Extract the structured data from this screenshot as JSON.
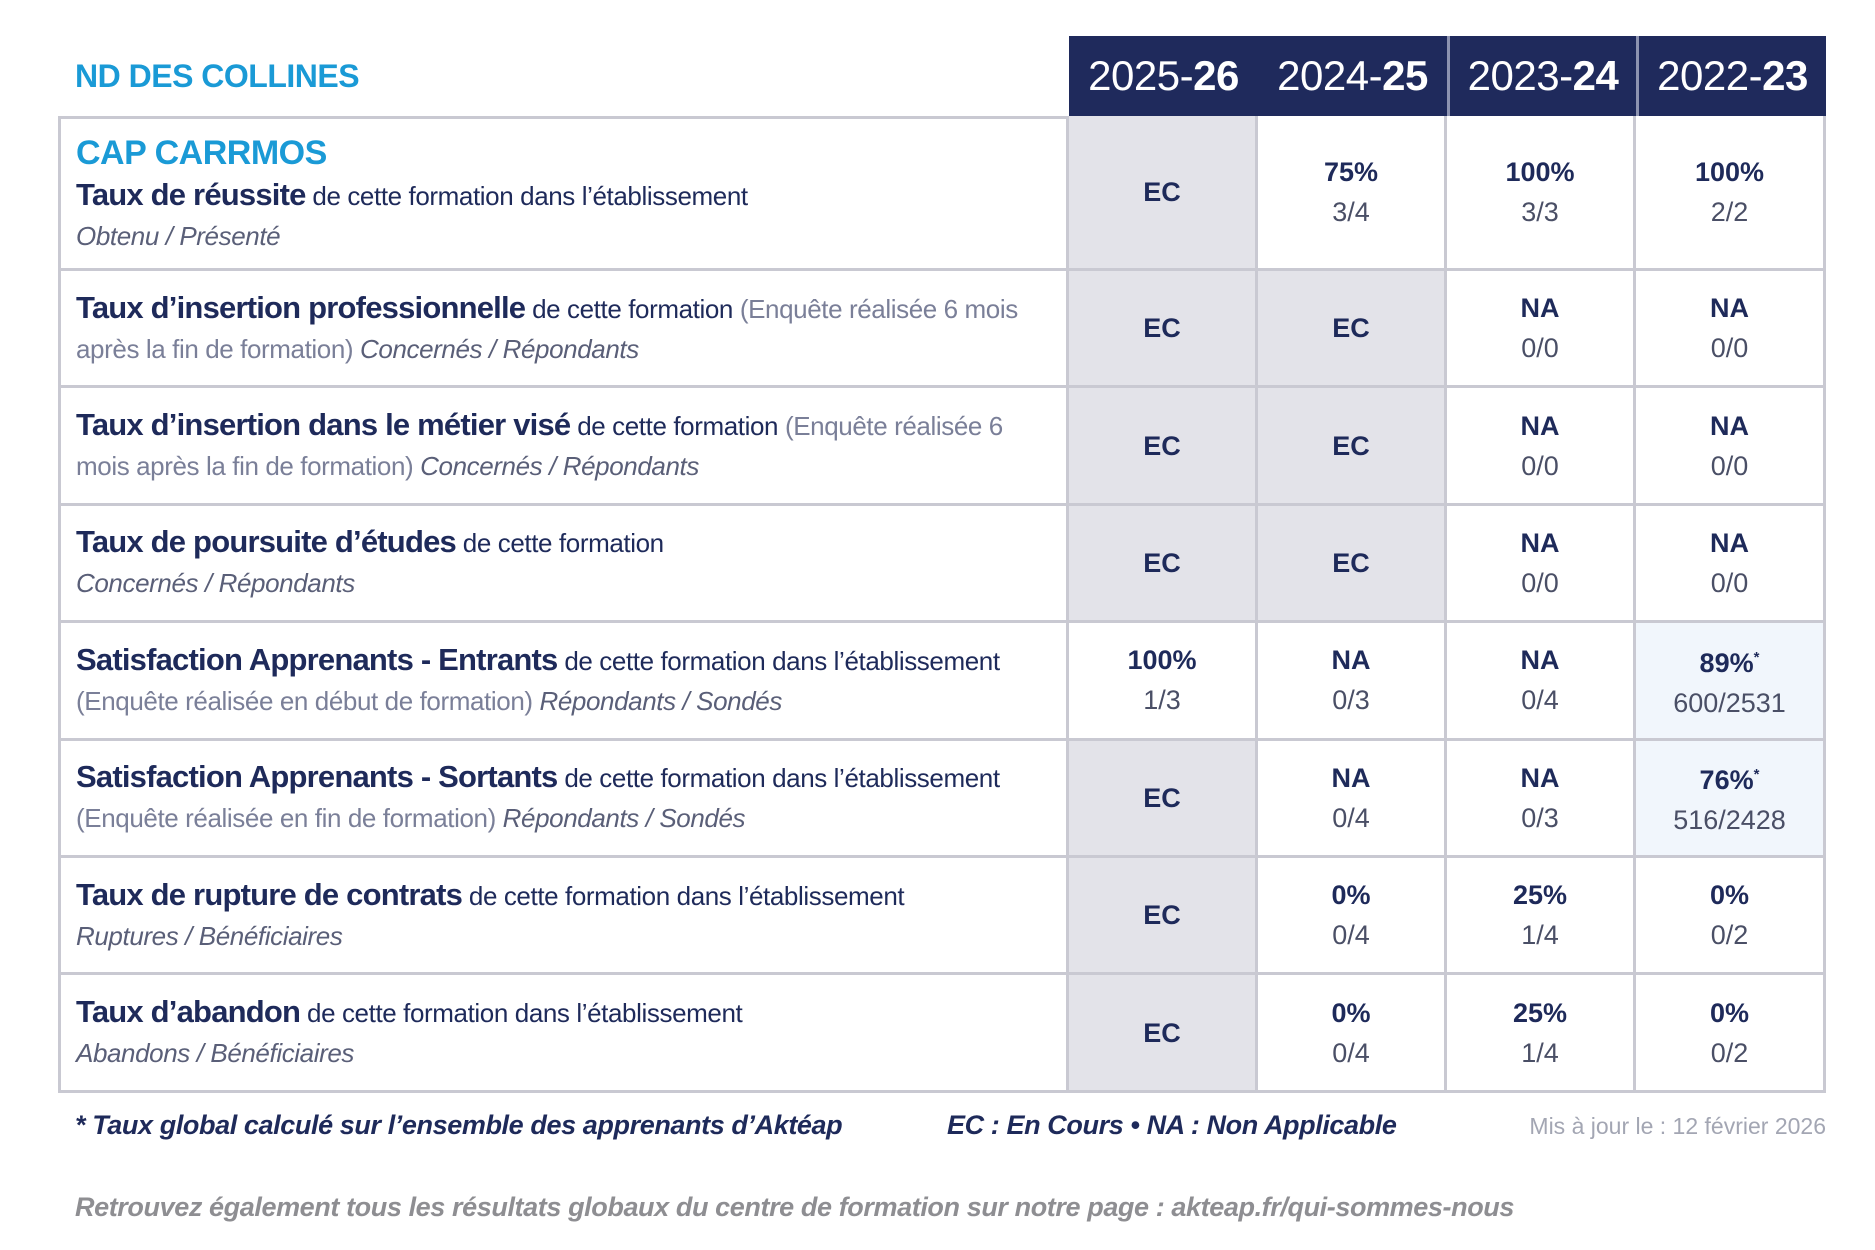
{
  "header": {
    "school": "ND DES COLLINES",
    "years": [
      {
        "light": "2025-",
        "bold": "26"
      },
      {
        "light": "2024-",
        "bold": "25"
      },
      {
        "light": "2023-",
        "bold": "24"
      },
      {
        "light": "2022-",
        "bold": "23"
      }
    ]
  },
  "program": "CAP CARRMOS",
  "rows": [
    {
      "title": "Taux de réussite",
      "desc": "de cette formation dans l’établissement",
      "unit": "Obtenu / Présenté",
      "cells": [
        {
          "rate": "EC"
        },
        {
          "rate": "75%",
          "ratio": "3/4"
        },
        {
          "rate": "100%",
          "ratio": "3/3"
        },
        {
          "rate": "100%",
          "ratio": "2/2"
        }
      ]
    },
    {
      "title": "Taux d’insertion professionnelle",
      "desc": "de cette formation",
      "note": "(Enquête réalisée 6 mois après la fin de formation)",
      "unit": "Concernés / Répondants",
      "cells": [
        {
          "rate": "EC"
        },
        {
          "rate": "EC"
        },
        {
          "rate": "NA",
          "ratio": "0/0"
        },
        {
          "rate": "NA",
          "ratio": "0/0"
        }
      ]
    },
    {
      "title": "Taux d’insertion dans le métier visé",
      "desc": "de cette formation",
      "note": "(Enquête réalisée 6 mois après la fin de formation)",
      "unit": "Concernés / Répondants",
      "cells": [
        {
          "rate": "EC"
        },
        {
          "rate": "EC"
        },
        {
          "rate": "NA",
          "ratio": "0/0"
        },
        {
          "rate": "NA",
          "ratio": "0/0"
        }
      ]
    },
    {
      "title": "Taux de poursuite d’études",
      "desc": "de cette formation",
      "unit": "Concernés / Répondants",
      "cells": [
        {
          "rate": "EC"
        },
        {
          "rate": "EC"
        },
        {
          "rate": "NA",
          "ratio": "0/0"
        },
        {
          "rate": "NA",
          "ratio": "0/0"
        }
      ]
    },
    {
      "title": "Satisfaction Apprenants - Entrants",
      "desc": "de cette formation dans l’établissement",
      "note": "(Enquête réalisée en début de formation)",
      "unit": "Répondants / Sondés",
      "cells": [
        {
          "rate": "100%",
          "ratio": "1/3"
        },
        {
          "rate": "NA",
          "ratio": "0/3"
        },
        {
          "rate": "NA",
          "ratio": "0/4"
        },
        {
          "rate": "89%",
          "star": "*",
          "ratio": "600/2531"
        }
      ]
    },
    {
      "title": "Satisfaction Apprenants - Sortants",
      "desc": "de cette formation dans l’établissement",
      "note": "(Enquête réalisée en fin de formation)",
      "unit": "Répondants / Sondés",
      "cells": [
        {
          "rate": "EC"
        },
        {
          "rate": "NA",
          "ratio": "0/4"
        },
        {
          "rate": "NA",
          "ratio": "0/3"
        },
        {
          "rate": "76%",
          "star": "*",
          "ratio": "516/2428"
        }
      ]
    },
    {
      "title": "Taux de rupture de contrats",
      "desc": "de cette formation dans l’établissement",
      "unit": "Ruptures / Bénéficiaires",
      "cells": [
        {
          "rate": "EC"
        },
        {
          "rate": "0%",
          "ratio": "0/4"
        },
        {
          "rate": "25%",
          "ratio": "1/4"
        },
        {
          "rate": "0%",
          "ratio": "0/2"
        }
      ]
    },
    {
      "title": "Taux d’abandon",
      "desc": "de cette formation dans l’établissement",
      "unit": "Abandons / Bénéficiaires",
      "cells": [
        {
          "rate": "EC"
        },
        {
          "rate": "0%",
          "ratio": "0/4"
        },
        {
          "rate": "25%",
          "ratio": "1/4"
        },
        {
          "rate": "0%",
          "ratio": "0/2"
        }
      ]
    }
  ],
  "footer": {
    "note": "* Taux global calculé sur l’ensemble des apprenants d’Aktéap",
    "legend": "EC : En Cours • NA : Non Applicable",
    "updated": "Mis à jour le : 12 février 2026",
    "link": "Retrouvez également tous les résultats globaux du centre de formation sur notre page : akteap.fr/qui-sommes-nous"
  }
}
